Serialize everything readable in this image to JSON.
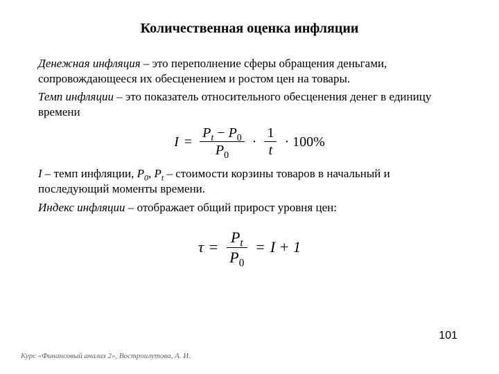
{
  "title": "Количественная оценка инфляции",
  "definitions": {
    "monetary_inflation_term": "Денежная инфляция",
    "monetary_inflation_def": " – это переполнение сферы обращения деньгами, сопровождающееся их обесценением и ростом цен на товары.",
    "inflation_rate_term": "Темп инфляции",
    "inflation_rate_def": " – это показатель относительного обесценения денег в единицу времени"
  },
  "formula1": {
    "lhs": "I",
    "eq": "=",
    "num": "P",
    "num_sub_t": "t",
    "minus": " − ",
    "num_sub_0": "0",
    "den": "P",
    "den_sub": "0",
    "dot": "·",
    "frac2_top": "1",
    "frac2_bot": "t",
    "pct": "· 100%"
  },
  "vars_explanation": {
    "var_I": "I",
    "var_I_def": " – темп инфляции, ",
    "var_P0": "P",
    "sub0": "0",
    "comma": ", ",
    "var_Pt": "P",
    "subt": "t",
    "var_P_def": " – стоимости корзины товаров в начальный и последующий моменты времени."
  },
  "index_def": {
    "term": "Индекс инфляции",
    "def": " – отображает общий прирост уровня цен:"
  },
  "formula2": {
    "tau": "τ",
    "eq": "=",
    "num": "P",
    "num_sub": "t",
    "den": "P",
    "den_sub": "0",
    "eq2": "=",
    "rhs": "I + 1"
  },
  "footer": {
    "page": "101",
    "credit": "Курс «Финансовый анализ 2», Востроилутова, А. И."
  }
}
